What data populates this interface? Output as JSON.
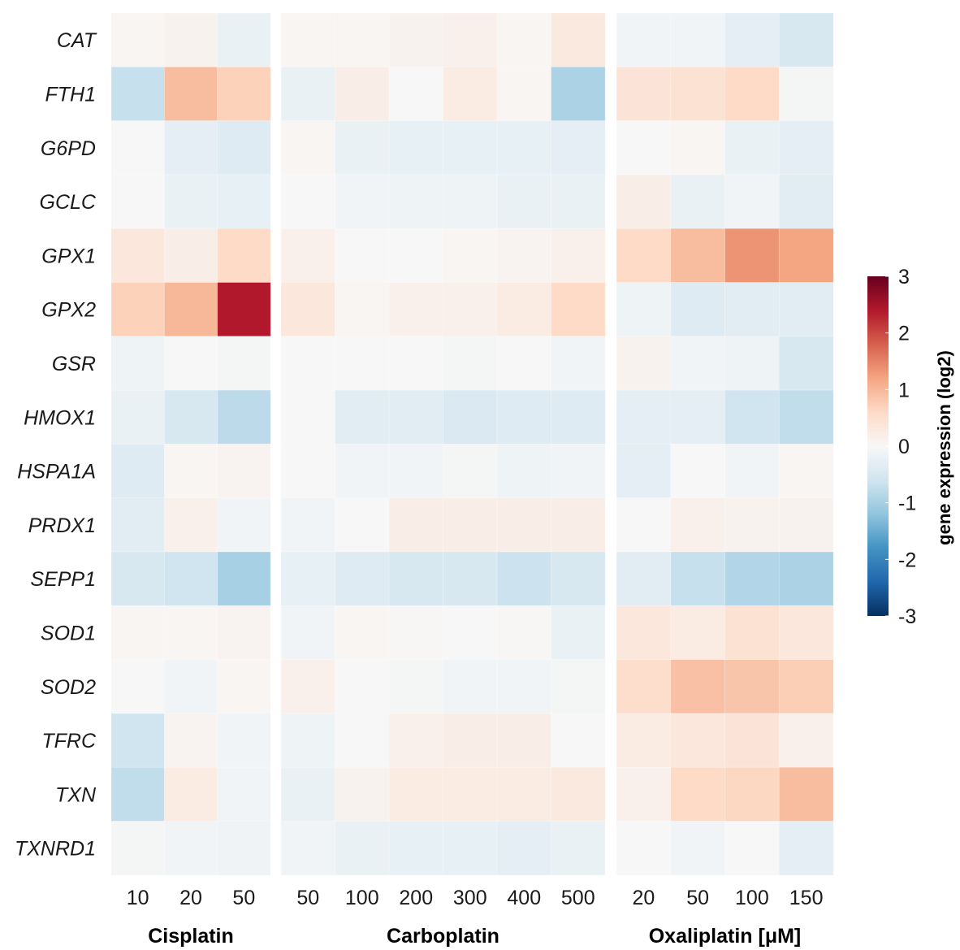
{
  "chart_data": {
    "type": "heatmap",
    "rows": [
      "CAT",
      "FTH1",
      "G6PD",
      "GCLC",
      "GPX1",
      "GPX2",
      "GSR",
      "HMOX1",
      "HSPA1A",
      "PRDX1",
      "SEPP1",
      "SOD1",
      "SOD2",
      "TFRC",
      "TXN",
      "TXNRD1"
    ],
    "panels": [
      {
        "label": "Cisplatin",
        "columns": [
          "10",
          "20",
          "50"
        ],
        "values": [
          [
            0.05,
            0.1,
            -0.2
          ],
          [
            -0.7,
            0.95,
            0.7
          ],
          [
            0.0,
            -0.3,
            -0.4
          ],
          [
            0.0,
            -0.2,
            -0.25
          ],
          [
            0.35,
            0.2,
            0.6
          ],
          [
            0.7,
            1.0,
            2.4
          ],
          [
            -0.15,
            0.0,
            -0.05
          ],
          [
            -0.2,
            -0.5,
            -0.8
          ],
          [
            -0.4,
            0.05,
            0.08
          ],
          [
            -0.35,
            0.15,
            -0.1
          ],
          [
            -0.5,
            -0.6,
            -1.0
          ],
          [
            0.05,
            0.05,
            0.08
          ],
          [
            0.0,
            -0.1,
            0.05
          ],
          [
            -0.6,
            0.08,
            -0.1
          ],
          [
            -0.75,
            0.25,
            -0.1
          ],
          [
            -0.05,
            -0.1,
            -0.12
          ]
        ]
      },
      {
        "label": "Carboplatin",
        "columns": [
          "50",
          "100",
          "200",
          "300",
          "400",
          "500"
        ],
        "values": [
          [
            0.05,
            0.05,
            0.1,
            0.15,
            0.05,
            0.3
          ],
          [
            -0.2,
            0.2,
            0.0,
            0.25,
            0.05,
            -0.95
          ],
          [
            0.05,
            -0.2,
            -0.25,
            -0.25,
            -0.25,
            -0.3
          ],
          [
            0.0,
            -0.1,
            -0.15,
            -0.15,
            -0.2,
            -0.2
          ],
          [
            0.15,
            0.0,
            0.0,
            0.05,
            0.08,
            0.15
          ],
          [
            0.35,
            0.05,
            0.15,
            0.15,
            0.25,
            0.6
          ],
          [
            0.0,
            0.0,
            0.0,
            -0.05,
            0.0,
            -0.1
          ],
          [
            0.0,
            -0.35,
            -0.35,
            -0.45,
            -0.4,
            -0.4
          ],
          [
            0.0,
            -0.1,
            -0.1,
            -0.05,
            -0.15,
            -0.1
          ],
          [
            -0.1,
            0.0,
            0.2,
            0.2,
            0.2,
            0.2
          ],
          [
            -0.25,
            -0.4,
            -0.5,
            -0.5,
            -0.65,
            -0.5
          ],
          [
            -0.1,
            0.05,
            0.02,
            0.0,
            0.02,
            -0.2
          ],
          [
            0.15,
            0.0,
            -0.05,
            -0.1,
            -0.1,
            -0.05
          ],
          [
            -0.15,
            0.0,
            0.15,
            0.2,
            0.2,
            0.0
          ],
          [
            -0.2,
            0.1,
            0.25,
            0.25,
            0.25,
            0.3
          ],
          [
            -0.1,
            -0.2,
            -0.25,
            -0.25,
            -0.3,
            -0.2
          ]
        ]
      },
      {
        "label": "Oxaliplatin [μM]",
        "columns": [
          "20",
          "50",
          "100",
          "150"
        ],
        "values": [
          [
            -0.1,
            -0.1,
            -0.3,
            -0.5
          ],
          [
            0.4,
            0.45,
            0.6,
            -0.05
          ],
          [
            0.0,
            0.05,
            -0.2,
            -0.3
          ],
          [
            0.2,
            -0.2,
            -0.1,
            -0.35
          ],
          [
            0.6,
            0.95,
            1.35,
            1.2
          ],
          [
            -0.15,
            -0.4,
            -0.35,
            -0.35
          ],
          [
            0.1,
            -0.1,
            -0.15,
            -0.5
          ],
          [
            -0.3,
            -0.3,
            -0.6,
            -0.75
          ],
          [
            -0.3,
            0.0,
            -0.1,
            0.05
          ],
          [
            0.0,
            0.15,
            0.1,
            0.1
          ],
          [
            -0.35,
            -0.7,
            -0.9,
            -0.95
          ],
          [
            0.35,
            0.25,
            0.45,
            0.35
          ],
          [
            0.55,
            0.9,
            0.85,
            0.75
          ],
          [
            0.25,
            0.35,
            0.4,
            0.15
          ],
          [
            0.15,
            0.6,
            0.65,
            0.95
          ],
          [
            0.0,
            -0.1,
            0.0,
            -0.3
          ]
        ]
      }
    ],
    "colorbar": {
      "title": "gene expression (log2)",
      "min": -3,
      "max": 3,
      "ticks": [
        "3",
        "2",
        "1",
        "0",
        "-1",
        "-2",
        "-3"
      ],
      "palette": [
        "#053061",
        "#2166ac",
        "#4393c3",
        "#92c5de",
        "#d1e5f0",
        "#f7f7f7",
        "#fddbc7",
        "#f4a582",
        "#d6604d",
        "#b2182b",
        "#67001f"
      ],
      "position": "right"
    },
    "grid": false
  }
}
